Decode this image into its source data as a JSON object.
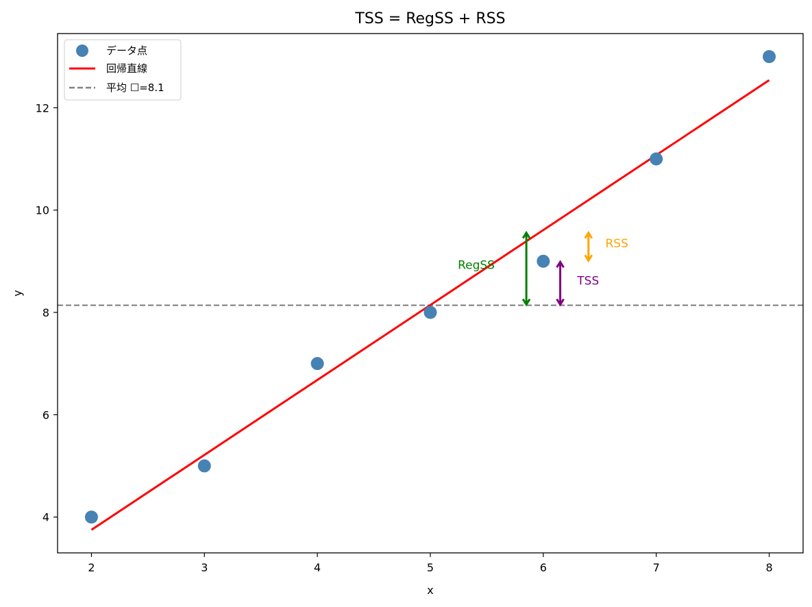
{
  "chart_data": {
    "type": "scatter",
    "title": "TSS = RegSS + RSS",
    "xlabel": "x",
    "ylabel": "y",
    "xlim": [
      1.7,
      8.3
    ],
    "ylim": [
      3.3,
      13.45
    ],
    "x_ticks": [
      2,
      3,
      4,
      5,
      6,
      7,
      8
    ],
    "y_ticks": [
      4,
      6,
      8,
      10,
      12
    ],
    "grid": false,
    "legend_position": "top-left",
    "points": {
      "name": "データ点",
      "color": "#4682b4",
      "x": [
        2,
        3,
        4,
        5,
        6,
        7,
        8
      ],
      "y": [
        4,
        5,
        7,
        8,
        9,
        11,
        13
      ]
    },
    "regression_line": {
      "name": "回帰直線",
      "color": "#ff0000",
      "x": [
        2,
        8
      ],
      "y": [
        3.75,
        12.54
      ]
    },
    "mean_line": {
      "name": "平均 ☐=8.1",
      "color": "#808080",
      "y": 8.14
    },
    "annotations": [
      {
        "label": "RegSS",
        "color": "#008000",
        "x": 5.85,
        "y_from": 8.14,
        "y_to": 9.57,
        "label_x": 5.57,
        "label_y": 8.93,
        "label_anchor": "end"
      },
      {
        "label": "TSS",
        "color": "#800080",
        "x": 6.15,
        "y_from": 8.14,
        "y_to": 9.0,
        "label_x": 6.3,
        "label_y": 8.62,
        "label_anchor": "start"
      },
      {
        "label": "RSS",
        "color": "#ffa500",
        "x": 6.4,
        "y_from": 9.0,
        "y_to": 9.57,
        "label_x": 6.55,
        "label_y": 9.35,
        "label_anchor": "start"
      }
    ]
  }
}
